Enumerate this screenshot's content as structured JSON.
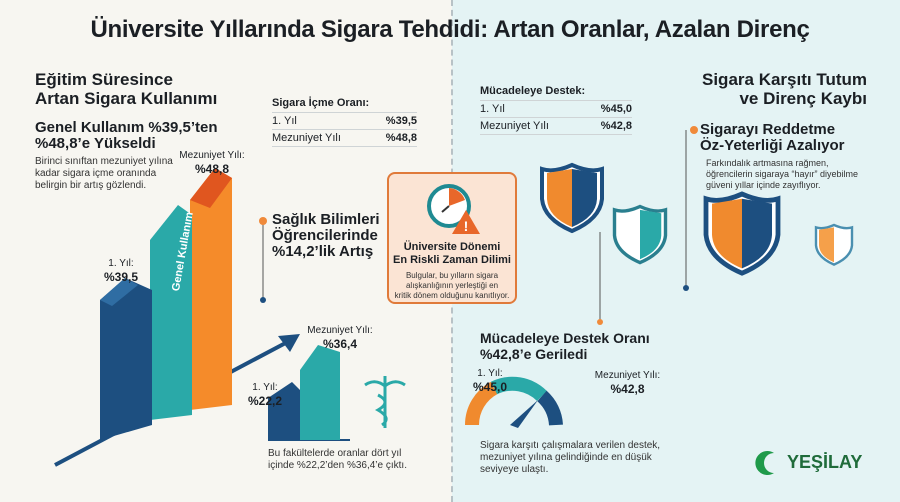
{
  "title": "Üniversite Yıllarında Sigara Tehdidi: Artan Oranlar, Azalan Direnç",
  "left": {
    "heading": [
      "Eğitim Süresince",
      "Artan Sigara Kullanımı"
    ],
    "general": {
      "headline": [
        "Genel Kullanım %39,5’ten",
        "%48,8’e Yükseldi"
      ],
      "text": [
        "Birinci sınıftan mezuniyet yılına",
        "kadar sigara içme oranında",
        "belirgin bir artış gözlendi."
      ],
      "bar_axis_label": "Genel Kullanım",
      "first": {
        "label": "1. Yıl:",
        "value": "%39,5"
      },
      "grad": {
        "label": "Mezuniyet Yılı:",
        "value": "%48,8"
      }
    },
    "table": {
      "header": "Sigara İçme Oranı:",
      "rows": [
        {
          "label": "1. Yıl",
          "value": "%39,5"
        },
        {
          "label": "Mezuniyet Yılı",
          "value": "%48,8"
        }
      ]
    },
    "health": {
      "headline": [
        "Sağlık Bilimleri",
        "Öğrencilerinde",
        "%14,2’lik Artış"
      ],
      "first": {
        "label": "1. Yıl:",
        "value": "%22,2"
      },
      "grad": {
        "label": "Mezuniyet Yılı:",
        "value": "%36,4"
      },
      "caption": [
        "Bu fakültelerde oranlar dört yıl",
        "içinde %22,2’den %36,4’e çıktı."
      ]
    }
  },
  "card": {
    "title": [
      "Üniversite Dönemi",
      "En Riskli Zaman Dilimi"
    ],
    "text": [
      "Bulgular, bu yılların sigara",
      "alışkanlığının yerleştiği en",
      "kritik dönem olduğunu kanıtlıyor."
    ]
  },
  "right": {
    "heading": [
      "Sigara Karşıtı Tutum",
      "ve Direnç Kaybı"
    ],
    "table": {
      "header": "Mücadeleye Destek:",
      "rows": [
        {
          "label": "1. Yıl",
          "value": "%45,0"
        },
        {
          "label": "Mezuniyet Yılı",
          "value": "%42,8"
        }
      ]
    },
    "efficacy": {
      "headline": [
        "Sigarayı Reddetme",
        "Öz-Yeterliği Azalıyor"
      ],
      "text": [
        "Farkındalık artmasına rağmen,",
        "öğrencilerin sigaraya “hayır” diyebilme",
        "güveni yıllar içinde zayıflıyor."
      ]
    },
    "support": {
      "headline": [
        "Mücadeleye Destek Oranı",
        "%42,8’e Geriledi"
      ],
      "first": {
        "label": "1. Yıl:",
        "value": "%45,0"
      },
      "grad": {
        "label": "Mezuniyet Yılı:",
        "value": "%42,8"
      },
      "caption": [
        "Sigara karşıtı çalışmalara verilen destek,",
        "mezuniyet yılına gelindiğinde en düşük",
        "seviyeye ulaştı."
      ]
    }
  },
  "logo": "YEŞİLAY",
  "colors": {
    "orange": "#f08a2e",
    "teal": "#2aa9a8",
    "navy": "#1d4f80",
    "green": "#1f9a4a"
  }
}
